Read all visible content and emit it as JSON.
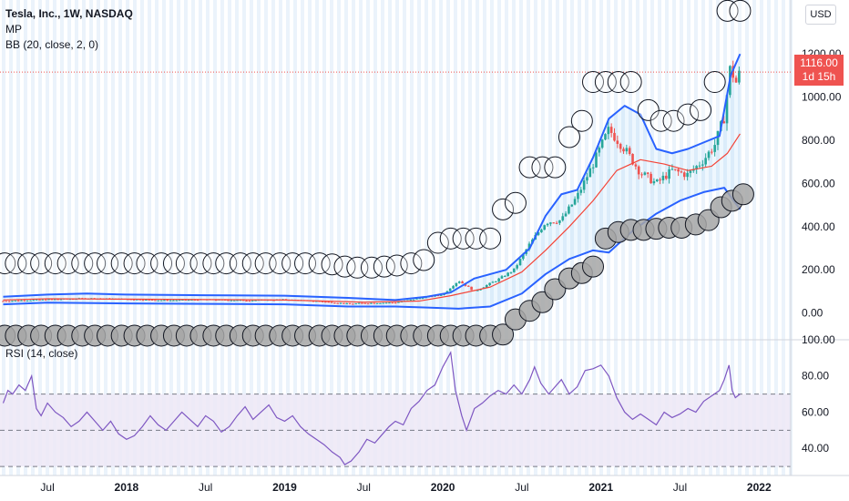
{
  "header": {
    "symbol_title": "Tesla, Inc., 1W, NASDAQ",
    "indicator_mp": "MP",
    "indicator_bb": "BB (20, close, 2, 0)",
    "currency_button": "USD"
  },
  "last_price": {
    "price": "1116.00",
    "countdown": "1d 15h",
    "value": 1116
  },
  "rsi_panel": {
    "label": "RSI (14, close)"
  },
  "colors": {
    "up": "#26a69a",
    "down": "#ef5350",
    "bb_band": "#2962ff",
    "bb_basis": "#f44336",
    "rsi_line": "#7e57c2",
    "rsi_fill": "#ede7f6",
    "vstripe": "#dbe9f8",
    "bubble_light": "#ffffff",
    "bubble_dark": "#a6a6a6",
    "last_price": "#ef5350"
  },
  "chart_data": [
    {
      "type": "line",
      "name": "price",
      "x_ticks": [
        "Jul",
        "2018",
        "Jul",
        "2019",
        "Jul",
        "2020",
        "Jul",
        "2021",
        "Jul",
        "2022"
      ],
      "x_ticks_bold": [
        false,
        true,
        false,
        true,
        false,
        true,
        false,
        true,
        false,
        true
      ],
      "x_tick_dates": [
        2017.5,
        2018.0,
        2018.5,
        2019.0,
        2019.5,
        2020.0,
        2020.5,
        2021.0,
        2021.5,
        2022.0
      ],
      "y_ticks": [
        "0.00",
        "200.00",
        "400.00",
        "600.00",
        "800.00",
        "1000.00",
        "1200.00"
      ],
      "y_tick_values": [
        0,
        200,
        400,
        600,
        800,
        1000,
        1200
      ],
      "ylim": [
        -120,
        1450
      ],
      "xlim": [
        2017.2,
        2022.2
      ],
      "close": [
        [
          2017.22,
          55
        ],
        [
          2017.5,
          62
        ],
        [
          2017.75,
          68
        ],
        [
          2018.0,
          64
        ],
        [
          2018.25,
          58
        ],
        [
          2018.5,
          62
        ],
        [
          2018.75,
          58
        ],
        [
          2019.0,
          62
        ],
        [
          2019.2,
          55
        ],
        [
          2019.4,
          42
        ],
        [
          2019.5,
          45
        ],
        [
          2019.7,
          48
        ],
        [
          2019.85,
          68
        ],
        [
          2020.0,
          86
        ],
        [
          2020.1,
          150
        ],
        [
          2020.2,
          100
        ],
        [
          2020.35,
          155
        ],
        [
          2020.45,
          200
        ],
        [
          2020.55,
          320
        ],
        [
          2020.65,
          420
        ],
        [
          2020.75,
          430
        ],
        [
          2020.85,
          540
        ],
        [
          2020.95,
          690
        ],
        [
          2021.05,
          850
        ],
        [
          2021.15,
          760
        ],
        [
          2021.25,
          650
        ],
        [
          2021.35,
          600
        ],
        [
          2021.45,
          660
        ],
        [
          2021.55,
          640
        ],
        [
          2021.65,
          710
        ],
        [
          2021.72,
          780
        ],
        [
          2021.78,
          910
        ],
        [
          2021.82,
          1150
        ],
        [
          2021.85,
          1060
        ],
        [
          2021.88,
          1116
        ]
      ],
      "bb_upper": [
        [
          2017.22,
          75
        ],
        [
          2017.5,
          85
        ],
        [
          2017.75,
          90
        ],
        [
          2018.0,
          85
        ],
        [
          2018.5,
          82
        ],
        [
          2019.0,
          80
        ],
        [
          2019.4,
          70
        ],
        [
          2019.7,
          60
        ],
        [
          2019.9,
          75
        ],
        [
          2020.05,
          95
        ],
        [
          2020.2,
          160
        ],
        [
          2020.4,
          200
        ],
        [
          2020.55,
          300
        ],
        [
          2020.65,
          450
        ],
        [
          2020.75,
          550
        ],
        [
          2020.85,
          570
        ],
        [
          2020.95,
          720
        ],
        [
          2021.05,
          900
        ],
        [
          2021.15,
          960
        ],
        [
          2021.25,
          920
        ],
        [
          2021.35,
          760
        ],
        [
          2021.45,
          740
        ],
        [
          2021.55,
          760
        ],
        [
          2021.65,
          790
        ],
        [
          2021.75,
          820
        ],
        [
          2021.82,
          1100
        ],
        [
          2021.88,
          1200
        ]
      ],
      "bb_basis": [
        [
          2017.22,
          60
        ],
        [
          2017.5,
          66
        ],
        [
          2018.0,
          64
        ],
        [
          2018.5,
          62
        ],
        [
          2019.0,
          60
        ],
        [
          2019.5,
          50
        ],
        [
          2019.85,
          55
        ],
        [
          2020.05,
          80
        ],
        [
          2020.3,
          120
        ],
        [
          2020.5,
          190
        ],
        [
          2020.65,
          290
        ],
        [
          2020.8,
          400
        ],
        [
          2020.95,
          520
        ],
        [
          2021.1,
          660
        ],
        [
          2021.25,
          710
        ],
        [
          2021.4,
          690
        ],
        [
          2021.55,
          660
        ],
        [
          2021.7,
          680
        ],
        [
          2021.8,
          740
        ],
        [
          2021.88,
          830
        ]
      ],
      "bb_lower": [
        [
          2017.22,
          40
        ],
        [
          2017.5,
          48
        ],
        [
          2018.0,
          44
        ],
        [
          2018.5,
          42
        ],
        [
          2019.0,
          40
        ],
        [
          2019.4,
          30
        ],
        [
          2019.7,
          30
        ],
        [
          2019.9,
          25
        ],
        [
          2020.1,
          20
        ],
        [
          2020.3,
          30
        ],
        [
          2020.5,
          90
        ],
        [
          2020.65,
          180
        ],
        [
          2020.8,
          250
        ],
        [
          2020.95,
          290
        ],
        [
          2021.05,
          280
        ],
        [
          2021.2,
          380
        ],
        [
          2021.35,
          460
        ],
        [
          2021.5,
          520
        ],
        [
          2021.65,
          560
        ],
        [
          2021.78,
          580
        ],
        [
          2021.84,
          520
        ],
        [
          2021.88,
          480
        ]
      ],
      "bubbles_light": [
        [
          2017.23,
          230
        ],
        [
          2017.3,
          230
        ],
        [
          2017.38,
          230
        ],
        [
          2017.46,
          230
        ],
        [
          2017.55,
          230
        ],
        [
          2017.63,
          230
        ],
        [
          2017.72,
          230
        ],
        [
          2017.8,
          230
        ],
        [
          2017.88,
          230
        ],
        [
          2017.97,
          230
        ],
        [
          2018.05,
          230
        ],
        [
          2018.13,
          230
        ],
        [
          2018.22,
          230
        ],
        [
          2018.3,
          230
        ],
        [
          2018.38,
          230
        ],
        [
          2018.47,
          230
        ],
        [
          2018.55,
          230
        ],
        [
          2018.63,
          230
        ],
        [
          2018.72,
          230
        ],
        [
          2018.8,
          230
        ],
        [
          2018.88,
          230
        ],
        [
          2018.97,
          230
        ],
        [
          2019.05,
          230
        ],
        [
          2019.13,
          230
        ],
        [
          2019.22,
          230
        ],
        [
          2019.3,
          225
        ],
        [
          2019.38,
          215
        ],
        [
          2019.46,
          210
        ],
        [
          2019.55,
          210
        ],
        [
          2019.63,
          215
        ],
        [
          2019.71,
          220
        ],
        [
          2019.8,
          230
        ],
        [
          2019.88,
          245
        ],
        [
          2019.97,
          325
        ],
        [
          2020.05,
          345
        ],
        [
          2020.13,
          345
        ],
        [
          2020.21,
          345
        ],
        [
          2020.3,
          345
        ],
        [
          2020.38,
          480
        ],
        [
          2020.46,
          510
        ],
        [
          2020.55,
          675
        ],
        [
          2020.63,
          675
        ],
        [
          2020.71,
          675
        ],
        [
          2020.8,
          815
        ],
        [
          2020.88,
          890
        ],
        [
          2020.95,
          1070
        ],
        [
          2021.03,
          1070
        ],
        [
          2021.11,
          1070
        ],
        [
          2021.19,
          1070
        ],
        [
          2021.3,
          940
        ],
        [
          2021.38,
          890
        ],
        [
          2021.46,
          890
        ],
        [
          2021.55,
          920
        ],
        [
          2021.63,
          940
        ],
        [
          2021.72,
          1070
        ],
        [
          2021.8,
          1400
        ],
        [
          2021.88,
          1400
        ]
      ],
      "bubbles_dark": [
        [
          2017.23,
          -105
        ],
        [
          2017.3,
          -105
        ],
        [
          2017.38,
          -105
        ],
        [
          2017.46,
          -105
        ],
        [
          2017.55,
          -105
        ],
        [
          2017.63,
          -105
        ],
        [
          2017.72,
          -105
        ],
        [
          2017.8,
          -105
        ],
        [
          2017.88,
          -105
        ],
        [
          2017.97,
          -105
        ],
        [
          2018.05,
          -105
        ],
        [
          2018.13,
          -105
        ],
        [
          2018.22,
          -105
        ],
        [
          2018.3,
          -105
        ],
        [
          2018.38,
          -105
        ],
        [
          2018.47,
          -105
        ],
        [
          2018.55,
          -105
        ],
        [
          2018.63,
          -105
        ],
        [
          2018.72,
          -105
        ],
        [
          2018.8,
          -105
        ],
        [
          2018.88,
          -105
        ],
        [
          2018.97,
          -105
        ],
        [
          2019.05,
          -105
        ],
        [
          2019.13,
          -105
        ],
        [
          2019.22,
          -105
        ],
        [
          2019.3,
          -105
        ],
        [
          2019.38,
          -105
        ],
        [
          2019.46,
          -105
        ],
        [
          2019.55,
          -105
        ],
        [
          2019.63,
          -105
        ],
        [
          2019.71,
          -105
        ],
        [
          2019.8,
          -105
        ],
        [
          2019.88,
          -105
        ],
        [
          2019.97,
          -105
        ],
        [
          2020.05,
          -105
        ],
        [
          2020.13,
          -105
        ],
        [
          2020.21,
          -105
        ],
        [
          2020.3,
          -105
        ],
        [
          2020.38,
          -100
        ],
        [
          2020.46,
          -30
        ],
        [
          2020.55,
          10
        ],
        [
          2020.63,
          50
        ],
        [
          2020.71,
          110
        ],
        [
          2020.8,
          160
        ],
        [
          2020.88,
          185
        ],
        [
          2020.95,
          215
        ],
        [
          2021.03,
          345
        ],
        [
          2021.11,
          375
        ],
        [
          2021.19,
          385
        ],
        [
          2021.27,
          385
        ],
        [
          2021.35,
          390
        ],
        [
          2021.43,
          395
        ],
        [
          2021.51,
          395
        ],
        [
          2021.6,
          410
        ],
        [
          2021.68,
          430
        ],
        [
          2021.76,
          490
        ],
        [
          2021.83,
          520
        ],
        [
          2021.9,
          550
        ]
      ]
    },
    {
      "type": "line",
      "name": "rsi",
      "y_ticks": [
        "40.00",
        "60.00",
        "80.00",
        "100.00"
      ],
      "y_tick_values": [
        40,
        60,
        80,
        100
      ],
      "ylim": [
        25,
        100
      ],
      "band": [
        30,
        70
      ],
      "midline": 50,
      "values": [
        [
          2017.22,
          65
        ],
        [
          2017.25,
          72
        ],
        [
          2017.28,
          70
        ],
        [
          2017.32,
          75
        ],
        [
          2017.36,
          72
        ],
        [
          2017.4,
          80
        ],
        [
          2017.43,
          62
        ],
        [
          2017.46,
          58
        ],
        [
          2017.5,
          65
        ],
        [
          2017.55,
          60
        ],
        [
          2017.6,
          57
        ],
        [
          2017.65,
          52
        ],
        [
          2017.7,
          55
        ],
        [
          2017.75,
          60
        ],
        [
          2017.8,
          55
        ],
        [
          2017.85,
          50
        ],
        [
          2017.9,
          55
        ],
        [
          2017.95,
          48
        ],
        [
          2018.0,
          45
        ],
        [
          2018.05,
          47
        ],
        [
          2018.1,
          52
        ],
        [
          2018.15,
          58
        ],
        [
          2018.2,
          53
        ],
        [
          2018.25,
          50
        ],
        [
          2018.3,
          55
        ],
        [
          2018.35,
          60
        ],
        [
          2018.4,
          56
        ],
        [
          2018.45,
          52
        ],
        [
          2018.5,
          58
        ],
        [
          2018.55,
          55
        ],
        [
          2018.6,
          49
        ],
        [
          2018.65,
          52
        ],
        [
          2018.7,
          58
        ],
        [
          2018.75,
          63
        ],
        [
          2018.8,
          56
        ],
        [
          2018.85,
          60
        ],
        [
          2018.9,
          64
        ],
        [
          2018.95,
          57
        ],
        [
          2019.0,
          55
        ],
        [
          2019.05,
          58
        ],
        [
          2019.1,
          52
        ],
        [
          2019.15,
          48
        ],
        [
          2019.2,
          45
        ],
        [
          2019.25,
          42
        ],
        [
          2019.3,
          38
        ],
        [
          2019.35,
          35
        ],
        [
          2019.38,
          31
        ],
        [
          2019.42,
          33
        ],
        [
          2019.47,
          38
        ],
        [
          2019.52,
          45
        ],
        [
          2019.57,
          43
        ],
        [
          2019.62,
          48
        ],
        [
          2019.66,
          52
        ],
        [
          2019.7,
          55
        ],
        [
          2019.75,
          53
        ],
        [
          2019.8,
          62
        ],
        [
          2019.85,
          66
        ],
        [
          2019.9,
          72
        ],
        [
          2019.95,
          75
        ],
        [
          2020.0,
          85
        ],
        [
          2020.05,
          93
        ],
        [
          2020.08,
          72
        ],
        [
          2020.12,
          58
        ],
        [
          2020.15,
          50
        ],
        [
          2020.2,
          62
        ],
        [
          2020.25,
          65
        ],
        [
          2020.3,
          69
        ],
        [
          2020.35,
          72
        ],
        [
          2020.4,
          70
        ],
        [
          2020.45,
          75
        ],
        [
          2020.5,
          70
        ],
        [
          2020.55,
          78
        ],
        [
          2020.58,
          85
        ],
        [
          2020.62,
          76
        ],
        [
          2020.67,
          70
        ],
        [
          2020.7,
          73
        ],
        [
          2020.75,
          78
        ],
        [
          2020.8,
          70
        ],
        [
          2020.85,
          74
        ],
        [
          2020.9,
          83
        ],
        [
          2020.95,
          84
        ],
        [
          2021.0,
          86
        ],
        [
          2021.05,
          80
        ],
        [
          2021.1,
          68
        ],
        [
          2021.15,
          60
        ],
        [
          2021.2,
          56
        ],
        [
          2021.25,
          59
        ],
        [
          2021.3,
          56
        ],
        [
          2021.35,
          53
        ],
        [
          2021.4,
          60
        ],
        [
          2021.45,
          57
        ],
        [
          2021.5,
          59
        ],
        [
          2021.55,
          62
        ],
        [
          2021.6,
          60
        ],
        [
          2021.65,
          66
        ],
        [
          2021.7,
          69
        ],
        [
          2021.75,
          72
        ],
        [
          2021.78,
          78
        ],
        [
          2021.81,
          86
        ],
        [
          2021.83,
          72
        ],
        [
          2021.85,
          68
        ],
        [
          2021.88,
          70
        ]
      ]
    }
  ]
}
